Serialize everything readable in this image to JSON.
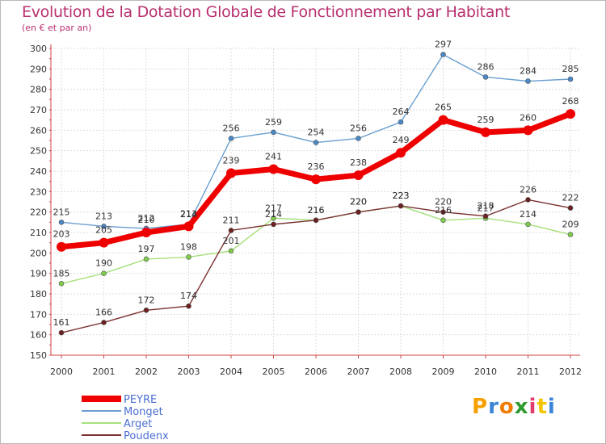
{
  "title": "Evolution de la Dotation Globale de Fonctionnement par Habitant",
  "subtitle": "(en € et par an)",
  "brand": {
    "letters": [
      "P",
      "r",
      "o",
      "x",
      "i",
      "t",
      "i"
    ],
    "colors": [
      "#f5a000",
      "#3a85d6",
      "#f07d00",
      "#2f9a2f",
      "#e23b6b",
      "#f5c400",
      "#3a85d6"
    ]
  },
  "chart_data": {
    "type": "line",
    "title": "Evolution de la Dotation Globale de Fonctionnement par Habitant",
    "subtitle": "(en € et par an)",
    "xlabel": "",
    "ylabel": "",
    "ylim": [
      150,
      300
    ],
    "yticks": [
      150,
      160,
      170,
      180,
      190,
      200,
      210,
      220,
      230,
      240,
      250,
      260,
      270,
      280,
      290,
      300
    ],
    "categories": [
      "2000",
      "2001",
      "2002",
      "2003",
      "2004",
      "2005",
      "2006",
      "2007",
      "2008",
      "2009",
      "2010",
      "2011",
      "2012"
    ],
    "grid": true,
    "legend_position": "bottom-left",
    "series": [
      {
        "name": "Monget",
        "color": "#6a9fd0",
        "marker": "#4a88c7",
        "values": [
          215,
          213,
          212,
          214,
          256,
          259,
          254,
          256,
          264,
          297,
          286,
          284,
          285
        ],
        "labels": [
          "215",
          "213",
          "212",
          "214",
          "256",
          "259",
          "254",
          "256",
          "264",
          "297",
          "286",
          "284",
          "285"
        ]
      },
      {
        "name": "Arget",
        "color": "#a6e07a",
        "marker": "#7fcc4d",
        "values": [
          185,
          190,
          197,
          198,
          201,
          217,
          216,
          220,
          223,
          216,
          217,
          214,
          209
        ],
        "labels": [
          "185",
          "190",
          "197",
          "198",
          "201",
          "217",
          "216",
          "220",
          "223",
          "216",
          "217",
          "214",
          "209"
        ]
      },
      {
        "name": "Poudenx",
        "color": "#7a3030",
        "marker": "#6b1f1f",
        "values": [
          161,
          166,
          172,
          174,
          211,
          214,
          216,
          220,
          223,
          220,
          218,
          226,
          222
        ],
        "labels": [
          "161",
          "166",
          "172",
          "174",
          "211",
          "214",
          "216",
          "220",
          "223",
          "220",
          "218",
          "226",
          "222"
        ]
      },
      {
        "name": "PEYRE",
        "color": "#ee0000",
        "marker": "#ee0000",
        "values": [
          203,
          205,
          210,
          213,
          239,
          241,
          236,
          238,
          249,
          265,
          259,
          260,
          268
        ],
        "labels": [
          "203",
          "205",
          "210",
          "213",
          "239",
          "241",
          "236",
          "238",
          "249",
          "265",
          "259",
          "260",
          "268"
        ]
      }
    ]
  },
  "legend": [
    {
      "name": "PEYRE",
      "color": "#ee0000"
    },
    {
      "name": "Monget",
      "color": "#6a9fd0"
    },
    {
      "name": "Arget",
      "color": "#a6e07a"
    },
    {
      "name": "Poudenx",
      "color": "#7a3030"
    }
  ]
}
